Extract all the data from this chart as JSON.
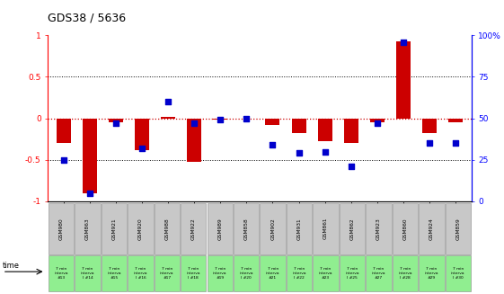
{
  "title": "GDS38 / 5636",
  "samples": [
    "GSM980",
    "GSM863",
    "GSM921",
    "GSM920",
    "GSM988",
    "GSM922",
    "GSM989",
    "GSM858",
    "GSM902",
    "GSM931",
    "GSM861",
    "GSM862",
    "GSM923",
    "GSM860",
    "GSM924",
    "GSM859"
  ],
  "intervals": [
    "#13",
    "l #14",
    "#15",
    "l #16",
    "#17",
    "l #18",
    "#19",
    "l #20",
    "#21",
    "l #22",
    "#23",
    "l #25",
    "#27",
    "l #28",
    "#29",
    "l #30"
  ],
  "log_ratio": [
    -0.3,
    -0.9,
    -0.05,
    -0.38,
    0.02,
    -0.52,
    -0.02,
    0.0,
    -0.08,
    -0.18,
    -0.28,
    -0.3,
    -0.05,
    0.93,
    -0.18,
    -0.05
  ],
  "percentile": [
    25,
    5,
    47,
    32,
    60,
    47,
    49,
    50,
    34,
    29,
    30,
    21,
    47,
    96,
    35,
    35
  ],
  "bar_color": "#cc0000",
  "dot_color": "#0000cc",
  "bg_color_gray": "#c8c8c8",
  "bg_color_green": "#90ee90",
  "zero_line_color": "#cc0000",
  "ylim_left": [
    -1.0,
    1.0
  ],
  "ylim_right": [
    0,
    100
  ],
  "yticks_left": [
    -1.0,
    -0.5,
    0.0,
    0.5,
    1.0
  ],
  "ytick_labels_left": [
    "-1",
    "-0.5",
    "0",
    "0.5",
    "1"
  ],
  "yticks_right": [
    0,
    25,
    50,
    75,
    100
  ],
  "ytick_labels_right": [
    "0",
    "25",
    "50",
    "75",
    "100%"
  ]
}
